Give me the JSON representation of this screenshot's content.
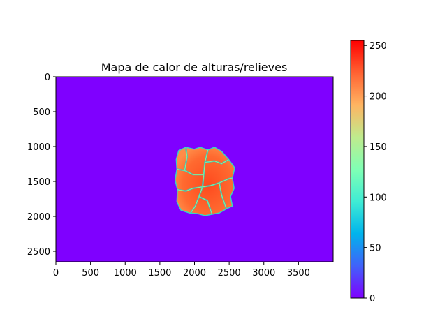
{
  "chart_data": {
    "type": "heatmap",
    "title": "Mapa de calor de alturas/relieves",
    "xlabel": "",
    "ylabel": "",
    "colormap": "rainbow",
    "x_range": [
      0,
      4000
    ],
    "y_range": [
      2650,
      0
    ],
    "x_ticks": [
      0,
      500,
      1000,
      1500,
      2000,
      2500,
      3000,
      3500
    ],
    "y_ticks": [
      0,
      500,
      1000,
      1500,
      2000,
      2500
    ],
    "colorbar": {
      "range": [
        0,
        255
      ],
      "ticks": [
        0,
        50,
        100,
        150,
        200,
        250
      ]
    },
    "background_value": 0,
    "region": {
      "x_range": [
        1720,
        2580
      ],
      "y_range": [
        1010,
        1990
      ],
      "typical_value": 225,
      "crack_value": 110
    },
    "grid": false
  }
}
